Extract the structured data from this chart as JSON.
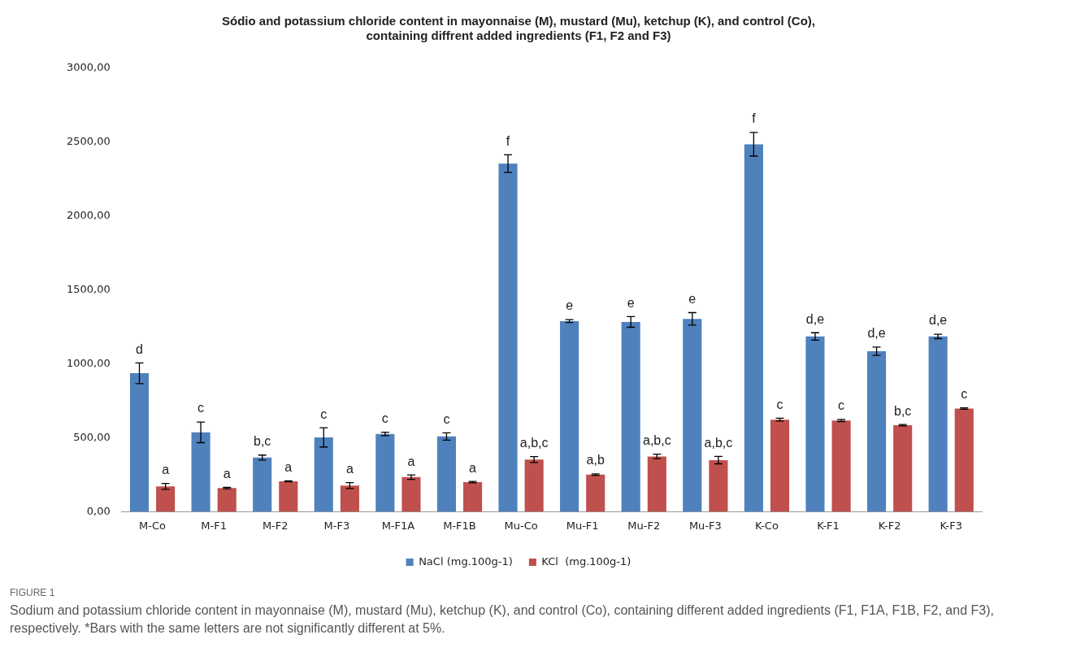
{
  "chart_data": {
    "type": "bar",
    "title": "Sódio and potassium chloride content in mayonnaise (M), mustard (Mu), ketchup (K), and control (Co),\ncontaining diffrent added ingredients (F1, F2 and F3)",
    "categories": [
      "M-Co",
      "M-F1",
      "M-F2",
      "M-F3",
      "M-F1A",
      "M-F1B",
      "Mu-Co",
      "Mu-F1",
      "Mu-F2",
      "Mu-F3",
      "K-Co",
      "K-F1",
      "K-F2",
      "K-F3"
    ],
    "series": [
      {
        "name": "NaCl (mg.100g-1)",
        "color": "#4f81bd",
        "values": [
          937,
          537,
          366,
          503,
          526,
          509,
          2355,
          1290,
          1284,
          1305,
          2486,
          1186,
          1086,
          1186
        ],
        "errors": [
          70,
          70,
          17,
          65,
          12,
          25,
          60,
          10,
          36,
          42,
          80,
          25,
          28,
          15
        ],
        "value_labels": [
          "d",
          "c",
          "b,c",
          "c",
          "c",
          "c",
          "f",
          "e",
          "e",
          "e",
          "f",
          "d,e",
          "d,e",
          "d,e"
        ]
      },
      {
        "name": "KCl  (mg.100g-1)",
        "color": "#c0504d",
        "values": [
          171,
          160,
          206,
          177,
          234,
          200,
          353,
          251,
          374,
          349,
          623,
          617,
          585,
          698
        ],
        "errors": [
          20,
          5,
          3,
          20,
          15,
          5,
          20,
          5,
          15,
          25,
          10,
          7,
          5,
          5
        ],
        "value_labels": [
          "a",
          "a",
          "a",
          "a",
          "a",
          "a",
          "a,b,c",
          "a,b",
          "a,b,c",
          "a,b,c",
          "c",
          "c",
          "b,c",
          "c"
        ]
      }
    ],
    "ylim": [
      0,
      3000
    ],
    "yticks": [
      {
        "value": 0,
        "label": "0,00"
      },
      {
        "value": 500,
        "label": "500,00"
      },
      {
        "value": 1000,
        "label": "1000,00"
      },
      {
        "value": 1500,
        "label": "1500,00"
      },
      {
        "value": 2000,
        "label": "2000,00"
      },
      {
        "value": 2500,
        "label": "2500,00"
      },
      {
        "value": 3000,
        "label": "3000,00"
      }
    ],
    "grid": false,
    "legend": "bottom",
    "annotations": [
      "FIGURE 1",
      "Sodium and potassium chloride content in mayonnaise (M), mustard (Mu), ketchup (K), and control (Co), containing different added ingredients (F1, F1A, F1B, F2, and F3), respectively. *Bars with the same letters are not significantly different at 5%."
    ]
  }
}
